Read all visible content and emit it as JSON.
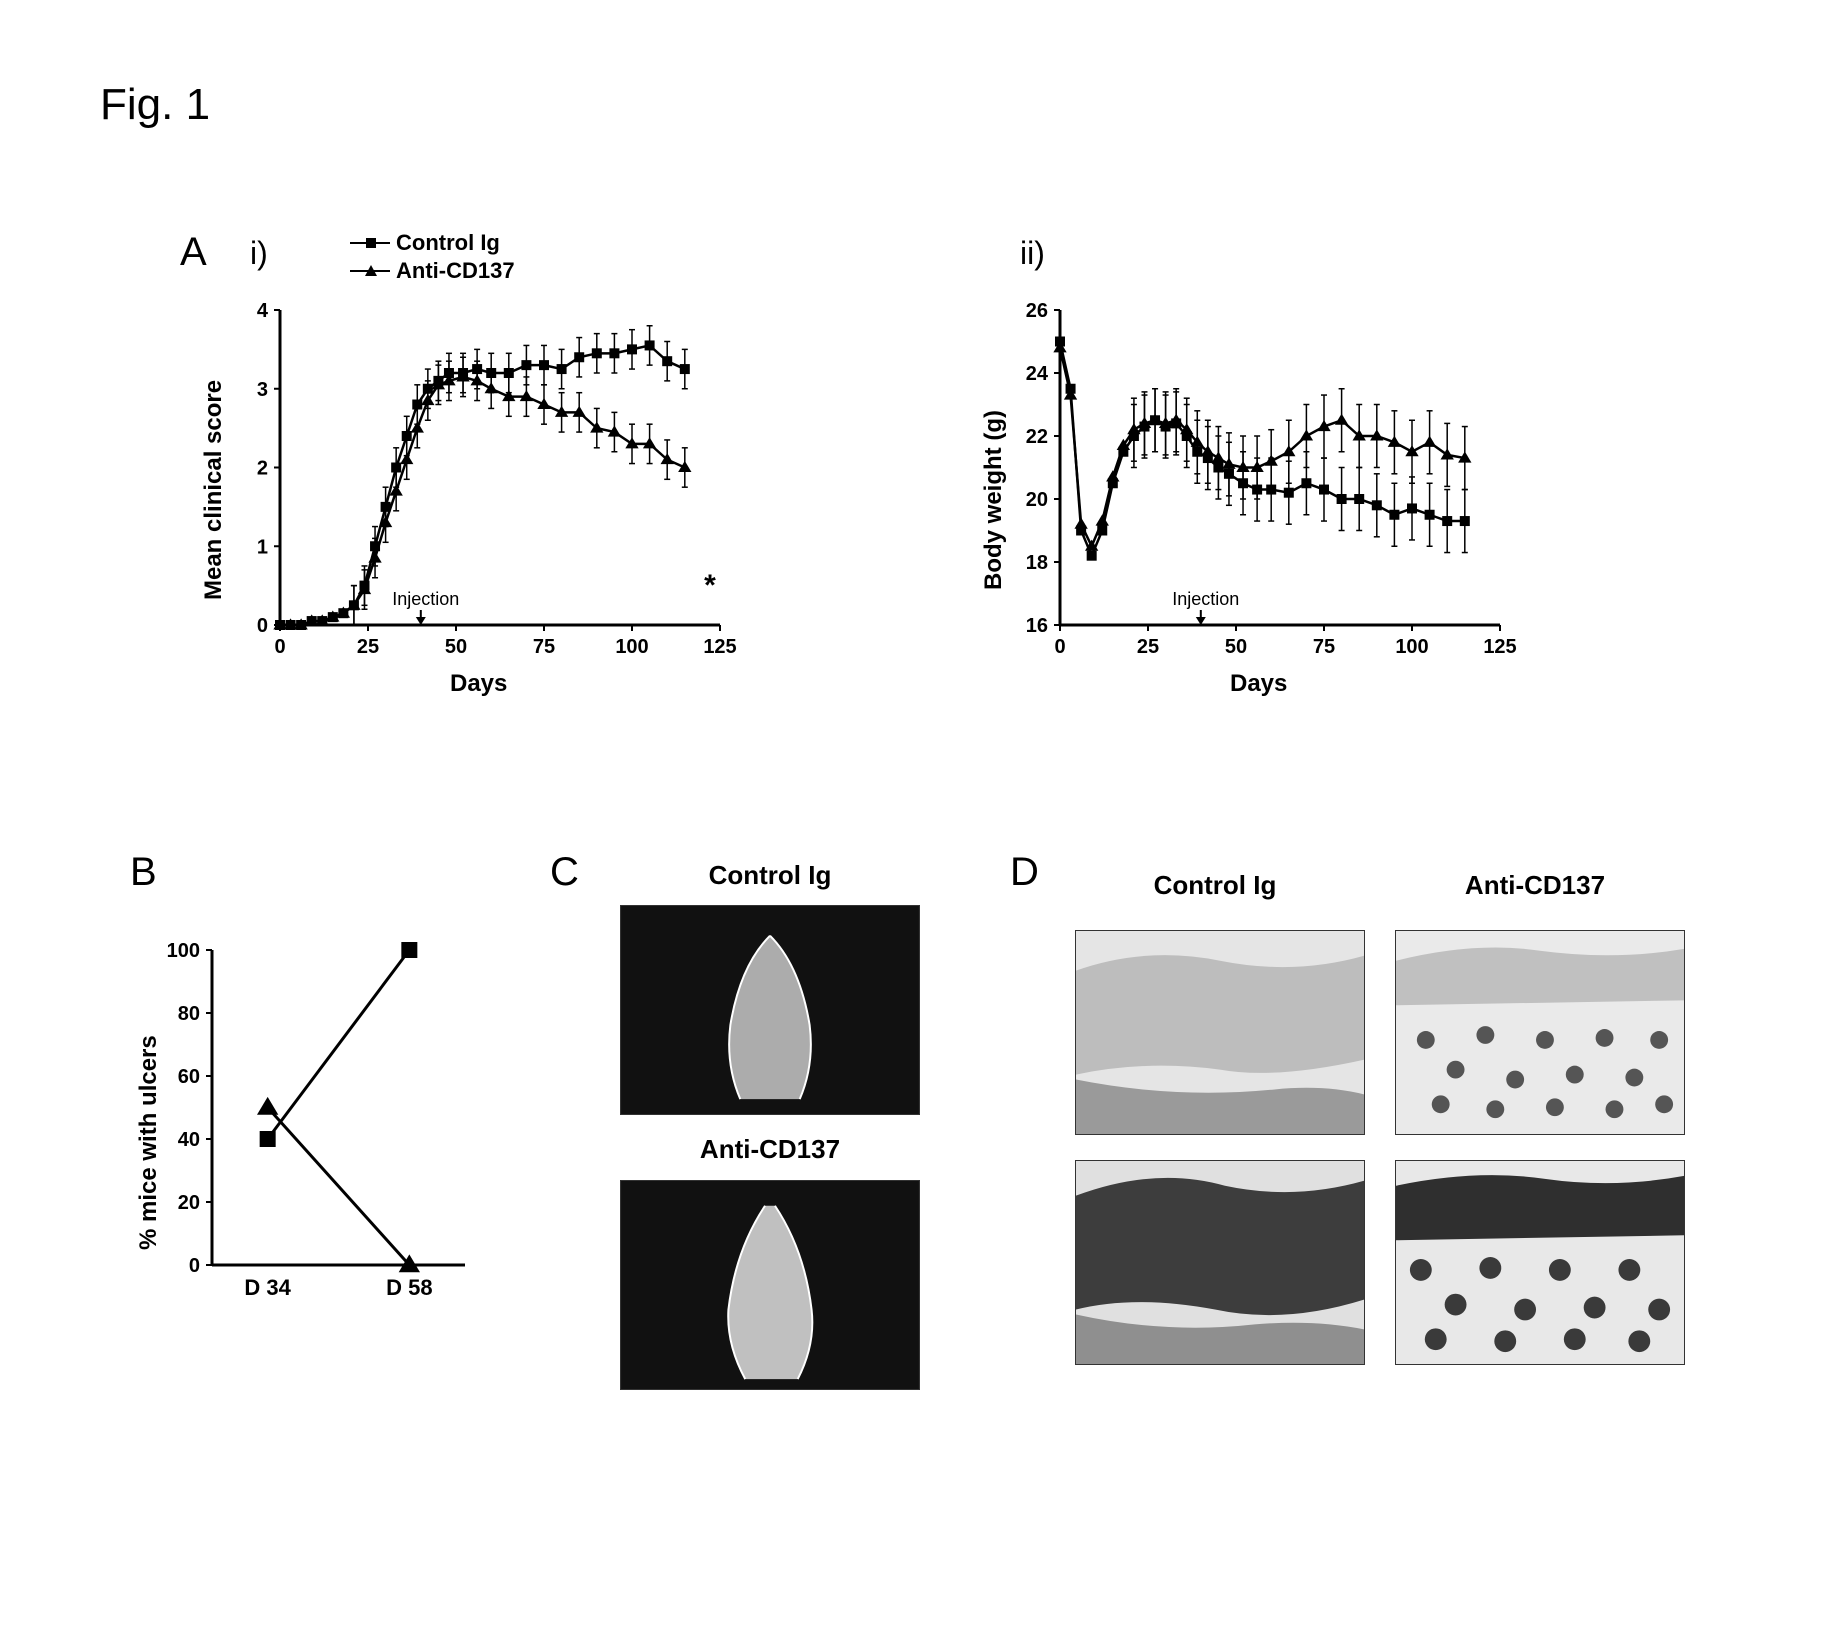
{
  "figure_label": "Fig. 1",
  "panels": {
    "A": "A",
    "B": "B",
    "C": "C",
    "D": "D",
    "Ai": "i)",
    "Aii": "ii)"
  },
  "legend": {
    "control": "Control Ig",
    "anti": "Anti-CD137",
    "control_marker": "square",
    "anti_marker": "triangle"
  },
  "chart_Ai": {
    "type": "line",
    "xlabel": "Days",
    "ylabel": "Mean clinical score",
    "xlim": [
      0,
      125
    ],
    "xtick_step": 25,
    "ylim": [
      0,
      4
    ],
    "ytick_step": 1,
    "injection_label": "Injection",
    "injection_x": 40,
    "star_label": "*",
    "control": {
      "marker": "square",
      "color": "#000000",
      "points": [
        {
          "x": 0,
          "y": 0.0
        },
        {
          "x": 3,
          "y": 0.0
        },
        {
          "x": 6,
          "y": 0.0
        },
        {
          "x": 9,
          "y": 0.05
        },
        {
          "x": 12,
          "y": 0.05
        },
        {
          "x": 15,
          "y": 0.1
        },
        {
          "x": 18,
          "y": 0.15
        },
        {
          "x": 21,
          "y": 0.25
        },
        {
          "x": 24,
          "y": 0.5
        },
        {
          "x": 27,
          "y": 1.0
        },
        {
          "x": 30,
          "y": 1.5
        },
        {
          "x": 33,
          "y": 2.0
        },
        {
          "x": 36,
          "y": 2.4
        },
        {
          "x": 39,
          "y": 2.8
        },
        {
          "x": 42,
          "y": 3.0
        },
        {
          "x": 45,
          "y": 3.1
        },
        {
          "x": 48,
          "y": 3.2
        },
        {
          "x": 52,
          "y": 3.2
        },
        {
          "x": 56,
          "y": 3.25
        },
        {
          "x": 60,
          "y": 3.2
        },
        {
          "x": 65,
          "y": 3.2
        },
        {
          "x": 70,
          "y": 3.3
        },
        {
          "x": 75,
          "y": 3.3
        },
        {
          "x": 80,
          "y": 3.25
        },
        {
          "x": 85,
          "y": 3.4
        },
        {
          "x": 90,
          "y": 3.45
        },
        {
          "x": 95,
          "y": 3.45
        },
        {
          "x": 100,
          "y": 3.5
        },
        {
          "x": 105,
          "y": 3.55
        },
        {
          "x": 110,
          "y": 3.35
        },
        {
          "x": 115,
          "y": 3.25
        }
      ]
    },
    "anti": {
      "marker": "triangle",
      "color": "#000000",
      "points": [
        {
          "x": 0,
          "y": 0.0
        },
        {
          "x": 3,
          "y": 0.0
        },
        {
          "x": 6,
          "y": 0.0
        },
        {
          "x": 9,
          "y": 0.05
        },
        {
          "x": 12,
          "y": 0.05
        },
        {
          "x": 15,
          "y": 0.1
        },
        {
          "x": 18,
          "y": 0.15
        },
        {
          "x": 21,
          "y": 0.25
        },
        {
          "x": 24,
          "y": 0.45
        },
        {
          "x": 27,
          "y": 0.85
        },
        {
          "x": 30,
          "y": 1.3
        },
        {
          "x": 33,
          "y": 1.7
        },
        {
          "x": 36,
          "y": 2.1
        },
        {
          "x": 39,
          "y": 2.5
        },
        {
          "x": 42,
          "y": 2.85
        },
        {
          "x": 45,
          "y": 3.05
        },
        {
          "x": 48,
          "y": 3.1
        },
        {
          "x": 52,
          "y": 3.15
        },
        {
          "x": 56,
          "y": 3.1
        },
        {
          "x": 60,
          "y": 3.0
        },
        {
          "x": 65,
          "y": 2.9
        },
        {
          "x": 70,
          "y": 2.9
        },
        {
          "x": 75,
          "y": 2.8
        },
        {
          "x": 80,
          "y": 2.7
        },
        {
          "x": 85,
          "y": 2.7
        },
        {
          "x": 90,
          "y": 2.5
        },
        {
          "x": 95,
          "y": 2.45
        },
        {
          "x": 100,
          "y": 2.3
        },
        {
          "x": 105,
          "y": 2.3
        },
        {
          "x": 110,
          "y": 2.1
        },
        {
          "x": 115,
          "y": 2.0
        }
      ]
    },
    "error_bar": 0.25
  },
  "chart_Aii": {
    "type": "line",
    "xlabel": "Days",
    "ylabel": "Body weight (g)",
    "xlim": [
      0,
      125
    ],
    "xtick_step": 25,
    "ylim": [
      16,
      26
    ],
    "ytick_step": 2,
    "injection_label": "Injection",
    "injection_x": 40,
    "control": {
      "marker": "square",
      "color": "#000000",
      "points": [
        {
          "x": 0,
          "y": 25.0
        },
        {
          "x": 3,
          "y": 23.5
        },
        {
          "x": 6,
          "y": 19.0
        },
        {
          "x": 9,
          "y": 18.2
        },
        {
          "x": 12,
          "y": 19.0
        },
        {
          "x": 15,
          "y": 20.5
        },
        {
          "x": 18,
          "y": 21.5
        },
        {
          "x": 21,
          "y": 22.0
        },
        {
          "x": 24,
          "y": 22.3
        },
        {
          "x": 27,
          "y": 22.5
        },
        {
          "x": 30,
          "y": 22.3
        },
        {
          "x": 33,
          "y": 22.4
        },
        {
          "x": 36,
          "y": 22.0
        },
        {
          "x": 39,
          "y": 21.5
        },
        {
          "x": 42,
          "y": 21.3
        },
        {
          "x": 45,
          "y": 21.0
        },
        {
          "x": 48,
          "y": 20.8
        },
        {
          "x": 52,
          "y": 20.5
        },
        {
          "x": 56,
          "y": 20.3
        },
        {
          "x": 60,
          "y": 20.3
        },
        {
          "x": 65,
          "y": 20.2
        },
        {
          "x": 70,
          "y": 20.5
        },
        {
          "x": 75,
          "y": 20.3
        },
        {
          "x": 80,
          "y": 20.0
        },
        {
          "x": 85,
          "y": 20.0
        },
        {
          "x": 90,
          "y": 19.8
        },
        {
          "x": 95,
          "y": 19.5
        },
        {
          "x": 100,
          "y": 19.7
        },
        {
          "x": 105,
          "y": 19.5
        },
        {
          "x": 110,
          "y": 19.3
        },
        {
          "x": 115,
          "y": 19.3
        }
      ]
    },
    "anti": {
      "marker": "triangle",
      "color": "#000000",
      "points": [
        {
          "x": 0,
          "y": 24.8
        },
        {
          "x": 3,
          "y": 23.3
        },
        {
          "x": 6,
          "y": 19.2
        },
        {
          "x": 9,
          "y": 18.5
        },
        {
          "x": 12,
          "y": 19.3
        },
        {
          "x": 15,
          "y": 20.7
        },
        {
          "x": 18,
          "y": 21.7
        },
        {
          "x": 21,
          "y": 22.2
        },
        {
          "x": 24,
          "y": 22.4
        },
        {
          "x": 27,
          "y": 22.5
        },
        {
          "x": 30,
          "y": 22.4
        },
        {
          "x": 33,
          "y": 22.5
        },
        {
          "x": 36,
          "y": 22.2
        },
        {
          "x": 39,
          "y": 21.8
        },
        {
          "x": 42,
          "y": 21.5
        },
        {
          "x": 45,
          "y": 21.3
        },
        {
          "x": 48,
          "y": 21.1
        },
        {
          "x": 52,
          "y": 21.0
        },
        {
          "x": 56,
          "y": 21.0
        },
        {
          "x": 60,
          "y": 21.2
        },
        {
          "x": 65,
          "y": 21.5
        },
        {
          "x": 70,
          "y": 22.0
        },
        {
          "x": 75,
          "y": 22.3
        },
        {
          "x": 80,
          "y": 22.5
        },
        {
          "x": 85,
          "y": 22.0
        },
        {
          "x": 90,
          "y": 22.0
        },
        {
          "x": 95,
          "y": 21.8
        },
        {
          "x": 100,
          "y": 21.5
        },
        {
          "x": 105,
          "y": 21.8
        },
        {
          "x": 110,
          "y": 21.4
        },
        {
          "x": 115,
          "y": 21.3
        }
      ]
    },
    "error_bar": 1.0
  },
  "chart_B": {
    "type": "line",
    "ylabel": "% mice with ulcers",
    "categories": [
      "D 34",
      "D 58"
    ],
    "ylim": [
      0,
      100
    ],
    "ytick_step": 20,
    "control": {
      "marker": "square",
      "points": [
        {
          "c": "D 34",
          "y": 40
        },
        {
          "c": "D 58",
          "y": 100
        }
      ]
    },
    "anti": {
      "marker": "triangle",
      "points": [
        {
          "c": "D 34",
          "y": 50
        },
        {
          "c": "D 58",
          "y": 0
        }
      ]
    }
  },
  "panel_C": {
    "titles": {
      "control": "Control Ig",
      "anti": "Anti-CD137"
    }
  },
  "panel_D": {
    "titles": {
      "control": "Control Ig",
      "anti": "Anti-CD137"
    }
  },
  "colors": {
    "line": "#000000",
    "axis": "#000000",
    "background": "#ffffff"
  },
  "fontsize": {
    "figure_label": 44,
    "panel_label": 40,
    "axis_label": 24,
    "tick": 20
  }
}
